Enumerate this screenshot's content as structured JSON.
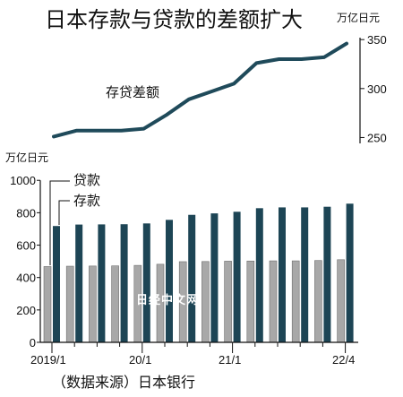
{
  "title": "日本存款与贷款的差额扩大",
  "source": "（数据来源）日本银行",
  "watermark": "日经中文网",
  "chart_data": [
    {
      "type": "line",
      "unit": "万亿日元",
      "series": [
        {
          "name": "存贷差额",
          "color": "#1f4a5a",
          "values": [
            251,
            257,
            257,
            257,
            259,
            273,
            289,
            297,
            305,
            326,
            330,
            330,
            332,
            346
          ]
        }
      ],
      "y_ticks": [
        250,
        300,
        350
      ],
      "ylim": [
        244,
        352
      ],
      "axis_side": "right"
    },
    {
      "type": "bar",
      "unit": "万亿日元",
      "categories": [
        "2019/1",
        "",
        "",
        "",
        "20/1",
        "",
        "",
        "",
        "21/1",
        "",
        "",
        "",
        "",
        "22/4"
      ],
      "x_tick_labels": [
        "2019/1",
        "20/1",
        "21/1",
        "22/4"
      ],
      "series": [
        {
          "name": "贷款",
          "color": "#a8a8a8",
          "values": [
            468,
            470,
            471,
            472,
            475,
            482,
            498,
            499,
            501,
            502,
            503,
            503,
            505,
            510
          ]
        },
        {
          "name": "存款",
          "color": "#1d4555",
          "values": [
            718,
            727,
            728,
            729,
            734,
            756,
            787,
            796,
            806,
            828,
            833,
            833,
            837,
            856
          ]
        }
      ],
      "y_ticks": [
        0,
        200,
        400,
        600,
        800,
        1000
      ],
      "ylim": [
        0,
        1040
      ],
      "axis_side": "left"
    }
  ]
}
